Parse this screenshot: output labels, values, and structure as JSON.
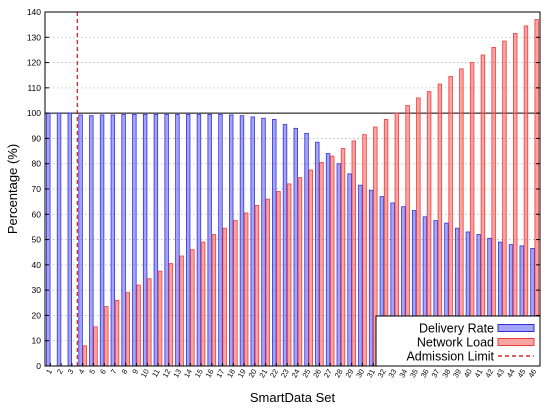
{
  "chart_data": {
    "type": "bar",
    "title": "",
    "xlabel": "SmartData Set",
    "ylabel": "Percentage (%)",
    "ylim": [
      0,
      140
    ],
    "yticks": [
      0,
      10,
      20,
      30,
      40,
      50,
      60,
      70,
      80,
      90,
      100,
      110,
      120,
      130,
      140
    ],
    "grid": "horizontal dotted",
    "reference_line": 100,
    "legend_position": "bottom-right",
    "categories": [
      "1",
      "2",
      "3",
      "4",
      "5",
      "6",
      "7",
      "8",
      "9",
      "10",
      "11",
      "12",
      "13",
      "14",
      "15",
      "16",
      "17",
      "18",
      "19",
      "20",
      "21",
      "22",
      "23",
      "24",
      "25",
      "26",
      "27",
      "28",
      "29",
      "30",
      "31",
      "32",
      "33",
      "34",
      "35",
      "36",
      "37",
      "38",
      "39",
      "40",
      "41",
      "42",
      "43",
      "44",
      "45",
      "46"
    ],
    "series": [
      {
        "name": "Delivery Rate",
        "color": "#3232d8",
        "values": [
          100,
          100,
          100,
          99.3,
          99,
          99.3,
          99.3,
          99.5,
          99.5,
          99.5,
          99.5,
          99.5,
          99.5,
          99.5,
          99.5,
          99.5,
          99.5,
          99.3,
          99,
          98.5,
          98,
          97.5,
          95.5,
          94,
          92,
          88.5,
          84,
          80,
          76,
          71.5,
          69.5,
          67,
          64.5,
          63,
          61.5,
          59,
          57.5,
          56.5,
          54.5,
          53,
          52,
          50.5,
          49,
          48,
          47.5,
          46.5
        ]
      },
      {
        "name": "Network Load",
        "color": "#ee3c3c",
        "values": [
          0,
          0,
          0,
          8,
          15.5,
          23.5,
          26,
          29,
          32,
          34.5,
          37.5,
          40.5,
          43.5,
          46,
          49,
          52,
          54.5,
          57.5,
          60.5,
          63.5,
          66,
          69,
          72,
          74.5,
          77.5,
          80.5,
          83,
          86,
          89,
          91.5,
          94.5,
          97.5,
          100,
          103,
          106,
          108.5,
          111.5,
          114.5,
          117.5,
          120,
          123,
          126,
          128.5,
          131.5,
          134.5,
          137
        ]
      }
    ],
    "admission_limit": {
      "name": "Admission Limit",
      "x": "3",
      "color": "#cc0000",
      "style": "dashed"
    }
  }
}
